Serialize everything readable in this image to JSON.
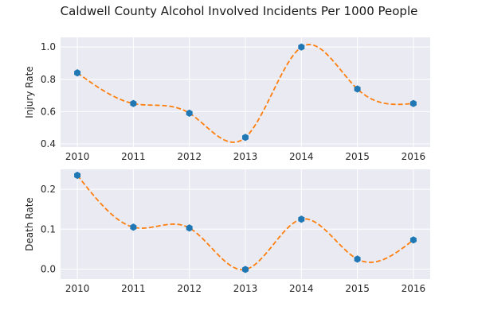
{
  "chart_data": {
    "type": "scatter",
    "title": "Caldwell County Alcohol Involved Incidents Per 1000 People",
    "x": [
      2010,
      2011,
      2012,
      2013,
      2014,
      2015,
      2016
    ],
    "x_tick_labels": [
      "2010",
      "2011",
      "2012",
      "2013",
      "2014",
      "2015",
      "2016"
    ],
    "xlim": [
      2009.7,
      2016.3
    ],
    "grid": true,
    "colors": {
      "points": "#1f77b4",
      "fit_curve": "#ff7f0e",
      "plot_background": "#eaeaf2",
      "grid": "#ffffff"
    },
    "fit_curve_style": "dashed smooth curve",
    "panels": [
      {
        "ylabel": "Injury Rate",
        "ylim": [
          0.38,
          1.06
        ],
        "y_ticks": [
          0.4,
          0.6,
          0.8,
          1.0
        ],
        "y_tick_labels": [
          "0.4",
          "0.6",
          "0.8",
          "1.0"
        ],
        "values": [
          0.84,
          0.65,
          0.59,
          0.44,
          1.0,
          0.74,
          0.65
        ]
      },
      {
        "ylabel": "Death Rate",
        "ylim": [
          -0.025,
          0.25
        ],
        "y_ticks": [
          0.0,
          0.1,
          0.2
        ],
        "y_tick_labels": [
          "0.0",
          "0.1",
          "0.2"
        ],
        "values": [
          0.235,
          0.105,
          0.103,
          -0.001,
          0.125,
          0.025,
          0.073
        ]
      }
    ]
  }
}
